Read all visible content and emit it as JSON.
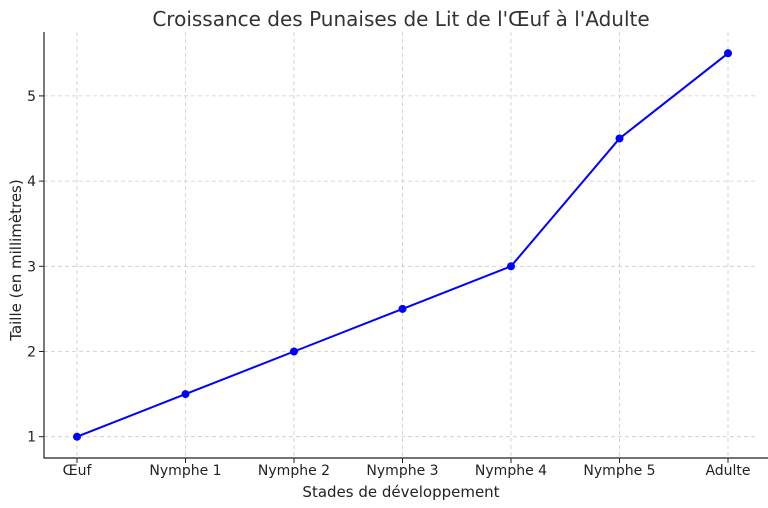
{
  "chart_data": {
    "type": "line",
    "title": "Croissance des Punaises de Lit de l'Œuf à l'Adulte",
    "xlabel": "Stades de développement",
    "ylabel": "Taille (en millimètres)",
    "categories": [
      "Œuf",
      "Nymphe 1",
      "Nymphe 2",
      "Nymphe 3",
      "Nymphe 4",
      "Nymphe 5",
      "Adulte"
    ],
    "values": [
      1.0,
      1.5,
      2.0,
      2.5,
      3.0,
      4.5,
      5.5
    ],
    "yticks": [
      1,
      2,
      3,
      4,
      5
    ],
    "ylim": [
      0.75,
      5.75
    ],
    "grid": true,
    "line_color": "#0000ff",
    "marker": "circle"
  }
}
